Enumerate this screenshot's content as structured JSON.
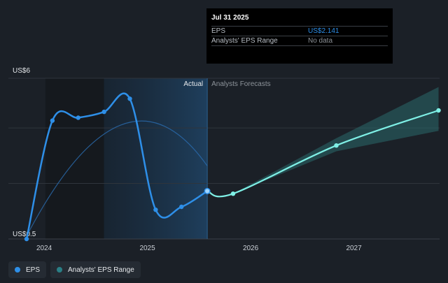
{
  "colors": {
    "background": "#1b2027",
    "eps": "#2e8fe8",
    "forecast": "#7ff0e6",
    "range_fill": "#2a6a6c",
    "grid": "#2f353c"
  },
  "tooltip": {
    "date": "Jul 31 2025",
    "rows": [
      {
        "label": "EPS",
        "value": "US$2.141"
      },
      {
        "label": "Analysts' EPS Range",
        "value": "No data"
      }
    ]
  },
  "sections": {
    "actual": "Actual",
    "forecast": "Analysts Forecasts"
  },
  "legend": {
    "eps": "EPS",
    "range": "Analysts' EPS Range"
  },
  "chart_data": {
    "type": "line",
    "ylabels": {
      "top": "US$6",
      "bottom": "US$0.5"
    },
    "ylim": [
      0.5,
      6
    ],
    "xlim": [
      2023.83,
      2027.82
    ],
    "x_ticks": [
      "2024",
      "2025",
      "2026",
      "2027"
    ],
    "series": [
      {
        "name": "EPS",
        "style": "actual",
        "x": [
          2023.83,
          2024.08,
          2024.33,
          2024.58,
          2024.83,
          2025.08,
          2025.33,
          2025.58
        ],
        "y": [
          0.5,
          4.55,
          4.65,
          4.85,
          5.3,
          1.5,
          1.6,
          2.14
        ]
      },
      {
        "name": "EPS",
        "style": "forecast",
        "x": [
          2025.58,
          2025.83,
          2026.83,
          2027.82
        ],
        "y": [
          2.14,
          2.05,
          3.7,
          4.9
        ]
      },
      {
        "name": "Analysts' EPS Range",
        "style": "range",
        "x": [
          2025.58,
          2025.83,
          2026.83,
          2027.82
        ],
        "low": [
          2.14,
          2.05,
          3.5,
          4.2
        ],
        "high": [
          2.14,
          2.05,
          3.95,
          5.7
        ]
      }
    ],
    "grid": true
  }
}
